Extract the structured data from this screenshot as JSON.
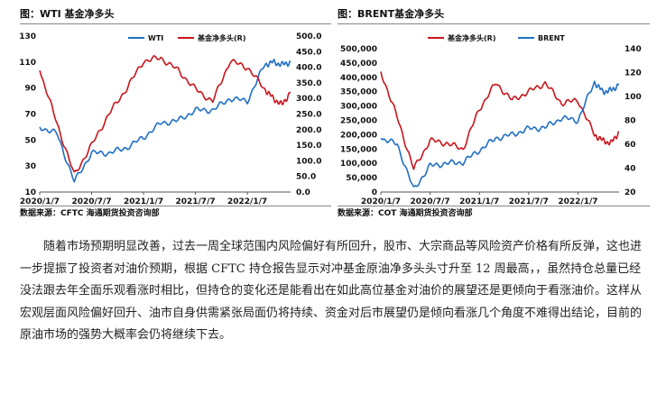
{
  "charts": {
    "left": {
      "title": "图：WTI 基金净多头",
      "source": "数据来源：CFTC  海通期货投资咨询部"
    },
    "right": {
      "title": "图：BRENT基金净多头",
      "source": "数据来源：COT  海通期货投资咨询部"
    }
  },
  "paragraph": "随着市场预期明显改善，过去一周全球范围内风险偏好有所回升，股市、大宗商品等风险资产价格有所反弹，这也进一步提振了投资者对油价预期，根据 CFTC 持仓报告显示对冲基金原油净多头头寸升至 12 周最高，，虽然持仓总量已经没法跟去年全面乐观看涨时相比，但持仓的变化还是能看出在如此高位基金对油价的展望还是更倾向于看涨油价。这样从宏观层面风险偏好回升、油市自身供需紧张局面仍将持续、资金对后市展望仍是倾向看涨几个角度不难得出结论，目前的原油市场的强势大概率会仍将继续下去。",
  "chart_data": [
    {
      "type": "line",
      "title": "图：WTI 基金净多头",
      "x": [
        "2020/1/7",
        "2020/3/7",
        "2020/5/7",
        "2020/7/7",
        "2020/9/7",
        "2020/11/7",
        "2021/1/7",
        "2021/3/7",
        "2021/5/7",
        "2021/7/7",
        "2021/9/7",
        "2021/11/7",
        "2022/1/7",
        "2022/3/7",
        "2022/4/7",
        "2022/5/7",
        "2022/6/7"
      ],
      "xticks": [
        "2020/1/7",
        "2020/7/7",
        "2021/1/7",
        "2021/7/7",
        "2022/1/7"
      ],
      "y_left_ticks": [
        "10",
        "30",
        "50",
        "70",
        "90",
        "110",
        "130"
      ],
      "y_right_ticks": [
        "0.0",
        "50.0",
        "100.0",
        "150.0",
        "200.0",
        "250.0",
        "300.0",
        "350.0",
        "400.0",
        "450.0",
        "500.0"
      ],
      "ylim_left": [
        10,
        130
      ],
      "ylim_right": [
        0,
        500
      ],
      "legend_position": "top",
      "series": [
        {
          "name": "WTI",
          "axis": "left",
          "color": "#1f6fc5",
          "values": [
            60,
            55,
            18,
            40,
            40,
            44,
            52,
            63,
            65,
            73,
            73,
            82,
            80,
            108,
            110,
            108,
            110
          ]
        },
        {
          "name": "基金净多头(R)",
          "axis": "right",
          "color": "#c8151b",
          "values": [
            390,
            220,
            55,
            150,
            250,
            330,
            420,
            430,
            390,
            330,
            290,
            420,
            400,
            330,
            300,
            280,
            320
          ]
        }
      ]
    },
    {
      "type": "line",
      "title": "图：BRENT基金净多头",
      "x": [
        "2020/1/7",
        "2020/3/7",
        "2020/5/7",
        "2020/7/7",
        "2020/9/7",
        "2020/11/7",
        "2021/1/7",
        "2021/3/7",
        "2021/5/7",
        "2021/7/7",
        "2021/9/7",
        "2021/11/7",
        "2022/1/7",
        "2022/3/7",
        "2022/4/7",
        "2022/5/7",
        "2022/6/7"
      ],
      "xticks": [
        "2020/1/7",
        "2020/7/7",
        "2021/1/7",
        "2021/7/7",
        "2022/1/7"
      ],
      "y_left_ticks": [
        "0",
        "50,000",
        "100,000",
        "150,000",
        "200,000",
        "250,000",
        "300,000",
        "350,000",
        "400,000",
        "450,000",
        "500,000"
      ],
      "y_right_ticks": [
        "20",
        "40",
        "60",
        "80",
        "100",
        "120",
        "140"
      ],
      "ylim_left": [
        0,
        500000
      ],
      "ylim_right": [
        20,
        140
      ],
      "legend_position": "top",
      "series": [
        {
          "name": "基金净多头(R)",
          "axis": "left",
          "color": "#c8151b",
          "values": [
            420000,
            260000,
            80000,
            180000,
            170000,
            150000,
            290000,
            380000,
            320000,
            350000,
            380000,
            310000,
            320000,
            200000,
            180000,
            170000,
            210000
          ]
        },
        {
          "name": "BRENT",
          "axis": "right",
          "color": "#1f6fc5",
          "values": [
            65,
            60,
            22,
            42,
            44,
            45,
            55,
            65,
            68,
            73,
            74,
            82,
            80,
            112,
            104,
            105,
            110
          ]
        }
      ]
    }
  ]
}
